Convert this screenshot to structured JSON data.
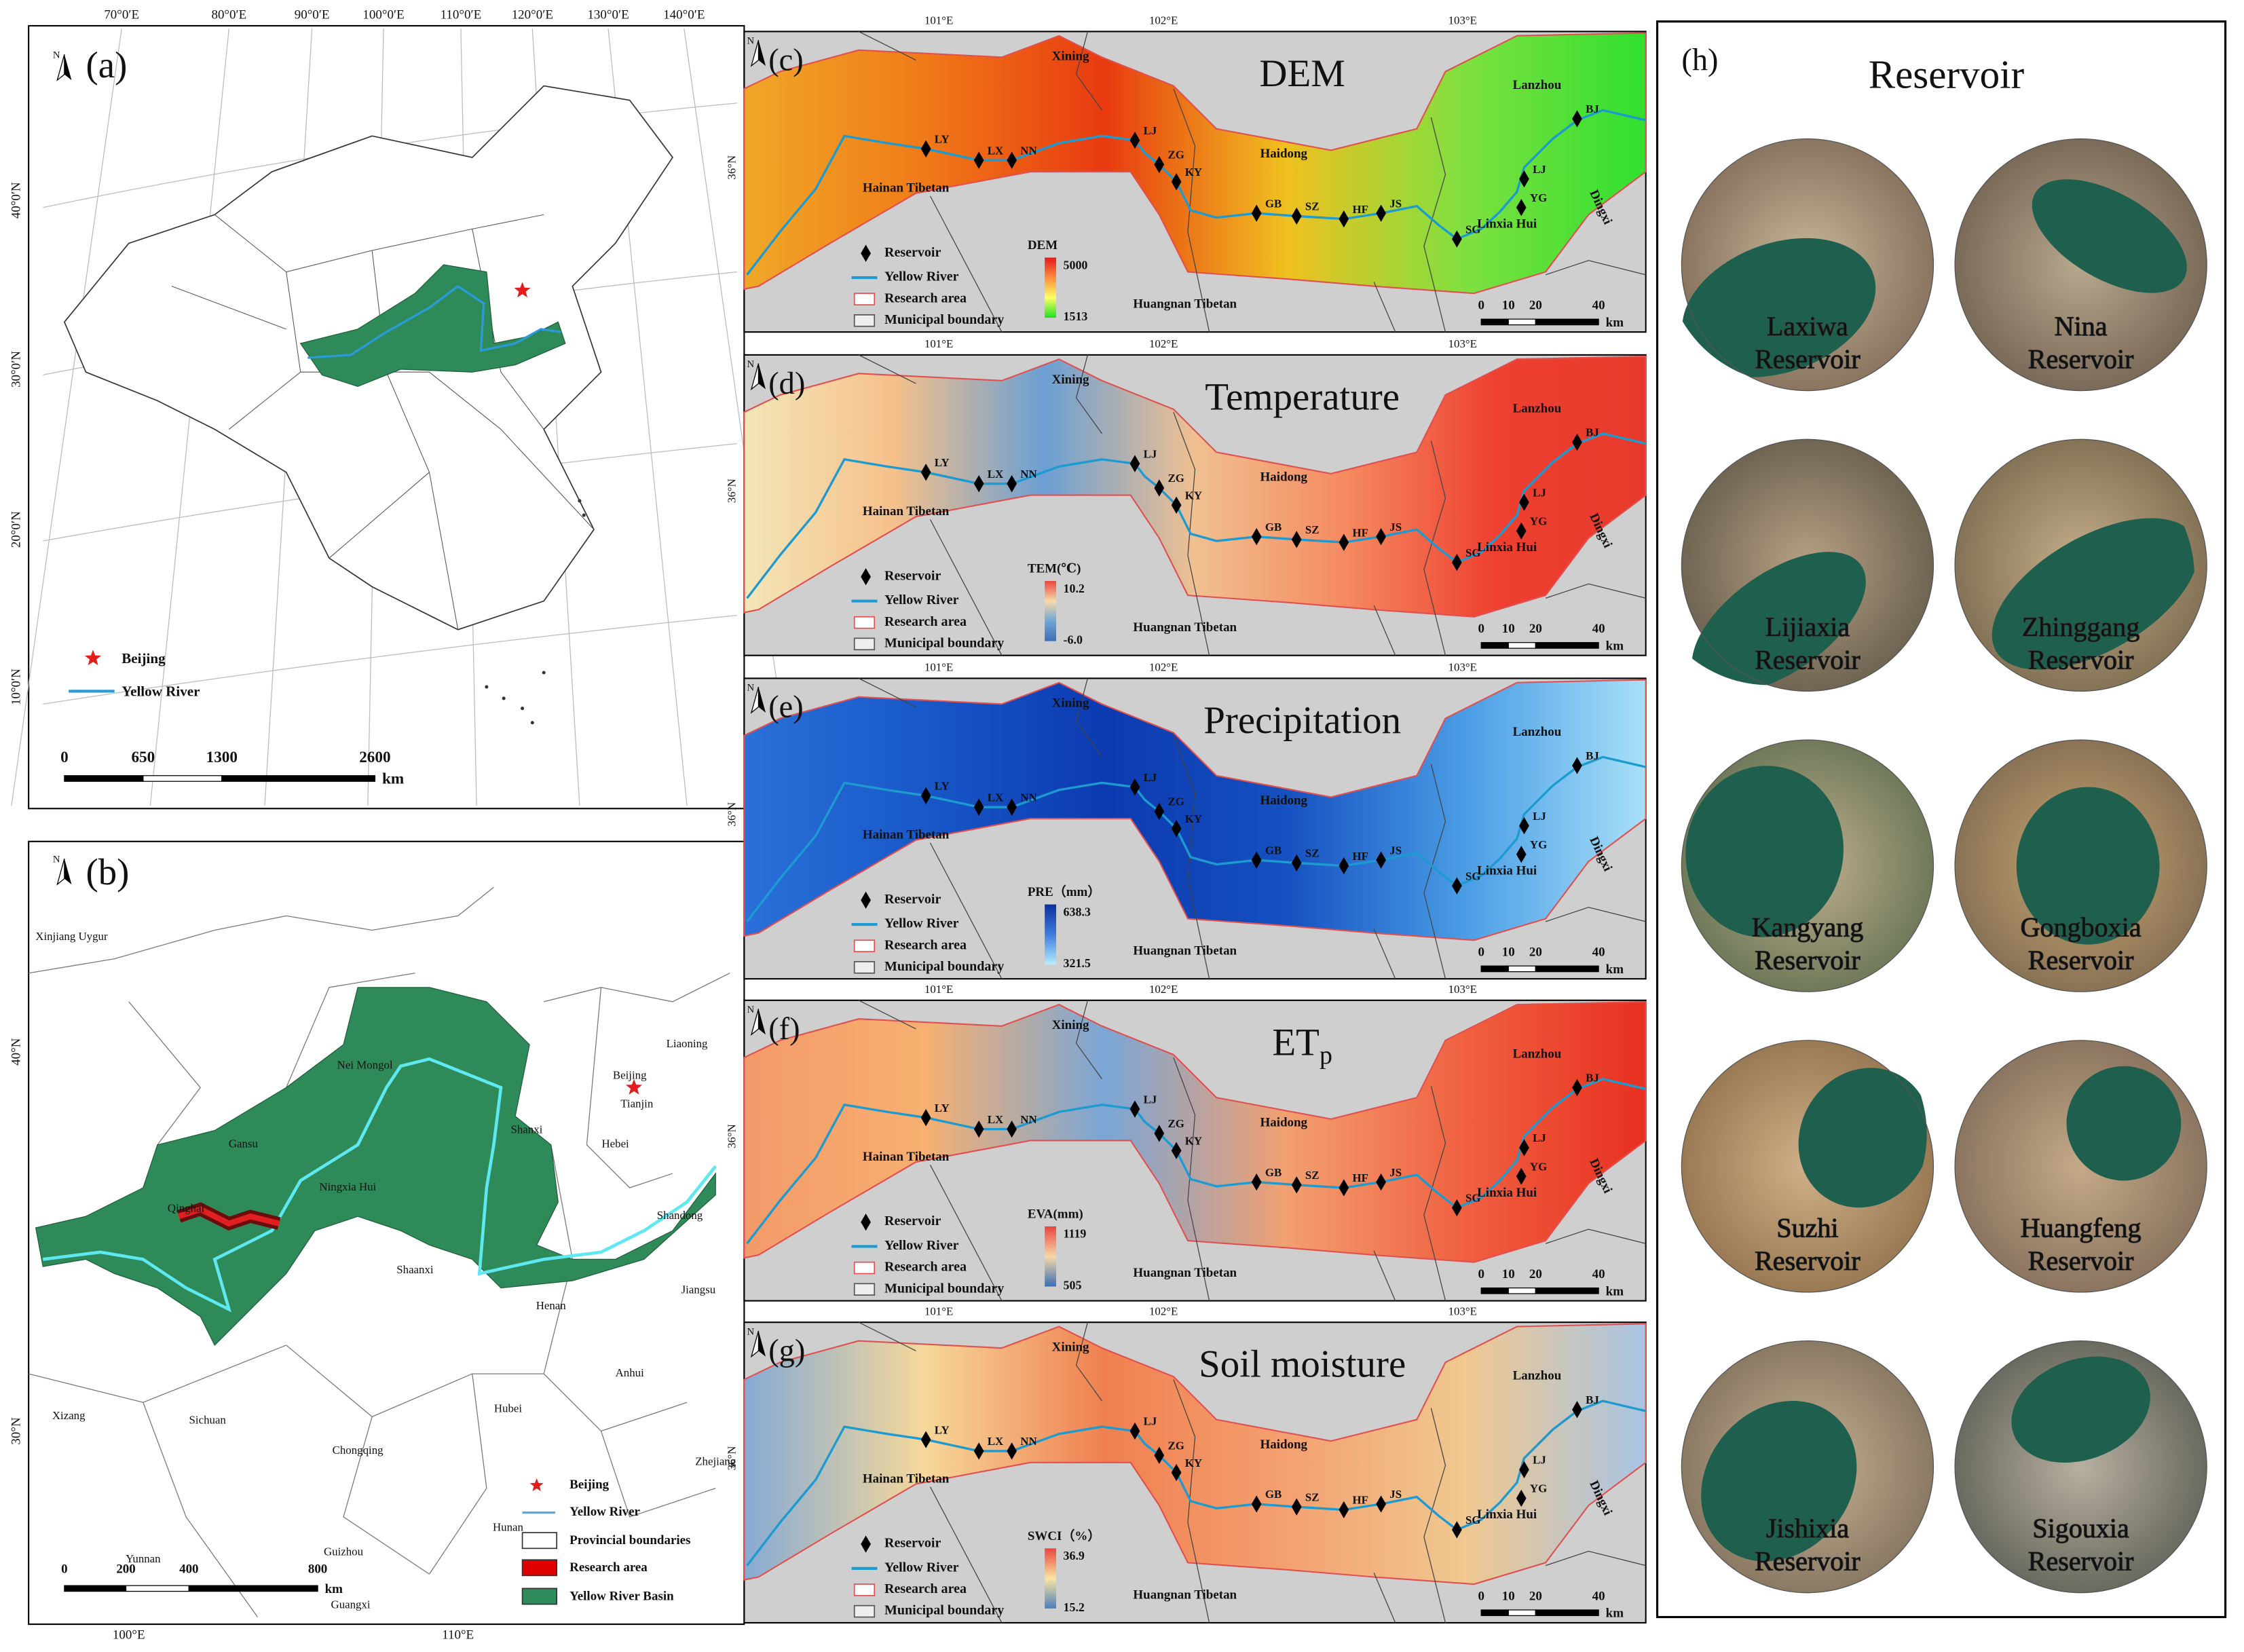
{
  "panel_a": {
    "label": "(a)",
    "north": "N",
    "lon_ticks": [
      "70°0′E",
      "80°0′E",
      "90°0′E",
      "100°0′E",
      "110°0′E",
      "120°0′E",
      "130°0′E",
      "140°0′E"
    ],
    "lat_ticks": [
      "40°0′N",
      "30°0′N",
      "20°0′N",
      "10°0′N"
    ],
    "legend": [
      "Beijing",
      "Yellow River"
    ],
    "scale": [
      "0",
      "650",
      "1300",
      "2600"
    ],
    "scale_unit": "km"
  },
  "panel_b": {
    "label": "(b)",
    "north": "N",
    "lat_ticks": [
      "40°N",
      "30°N"
    ],
    "lon_ticks": [
      "100°E",
      "110°E"
    ],
    "places": [
      "Xinjiang Uygur",
      "Gansu",
      "Qinghai",
      "Nei Mongol",
      "Ningxia Hui",
      "Shanxi",
      "Shaanxi",
      "Henan",
      "Hebei",
      "Beijing",
      "Tianjin",
      "Liaoning",
      "Shandong",
      "Jiangsu",
      "Anhui",
      "Hubei",
      "Sichuan",
      "Chongqing",
      "Xizang",
      "Yunnan",
      "Guizhou",
      "Hunan",
      "Guangxi",
      "Zhejiang"
    ],
    "legend": [
      "Beijing",
      "Yellow River",
      "Provincial boundaries",
      "Research area",
      "Yellow River Basin"
    ],
    "scale": [
      "0",
      "200",
      "400",
      "800"
    ],
    "scale_unit": "km"
  },
  "study_area": {
    "north": "N",
    "lon_ticks": [
      "101°E",
      "102°E",
      "103°E"
    ],
    "lat_tick": "36°N",
    "places": [
      "Xining",
      "Lanzhou",
      "Haidong",
      "Hainan Tibetan",
      "Huangnan Tibetan",
      "Linxia Hui",
      "Dingxi"
    ],
    "reservoir_codes": [
      "LY",
      "LX",
      "NN",
      "LJ",
      "ZG",
      "KY",
      "GB",
      "SZ",
      "HF",
      "JS",
      "SG",
      "YG",
      "LJ",
      "BJ"
    ],
    "legend": [
      "Reservoir",
      "Yellow River",
      "Research area",
      "Municipal boundary"
    ],
    "scale": [
      "0",
      "10",
      "20",
      "40"
    ],
    "scale_unit": "km"
  },
  "maps": [
    {
      "label": "(c)",
      "title": "DEM",
      "colorbar_title": "DEM",
      "colorbar_max": "5000",
      "colorbar_min": "1513",
      "ramp": [
        "#e31a1c",
        "#fd8d3c",
        "#ffff66",
        "#1ee01e"
      ],
      "fill": [
        "#f0a828",
        "#f07a18",
        "#e83a10",
        "#f0c020",
        "#7ee040",
        "#30e030"
      ]
    },
    {
      "label": "(d)",
      "title": "Temperature",
      "colorbar_title": "TEM(℃)",
      "colorbar_max": "10.2",
      "colorbar_min": "-6.0",
      "ramp": [
        "#e8453c",
        "#f7d9a8",
        "#6fa6d6",
        "#3a6fb5"
      ],
      "fill": [
        "#f4e6b8",
        "#f5c08a",
        "#6b9fd4",
        "#f0c090",
        "#f58a60",
        "#ee4030",
        "#e83a2c"
      ]
    },
    {
      "label": "(e)",
      "title": "Precipitation",
      "colorbar_title": "PRE（mm）",
      "colorbar_max": "638.3",
      "colorbar_min": "321.5",
      "ramp": [
        "#0b2f9e",
        "#3d7ddc",
        "#b8ecfa"
      ],
      "fill": [
        "#2a70d8",
        "#1858c8",
        "#0c3ab0",
        "#1550c0",
        "#4a9de6",
        "#a8e0f8"
      ]
    },
    {
      "label": "(f)",
      "title": "ET",
      "title_sub": "p",
      "colorbar_title": "EVA(mm)",
      "colorbar_max": "1119",
      "colorbar_min": "505",
      "ramp": [
        "#e8453c",
        "#f7d9a8",
        "#3a6fb5"
      ],
      "fill": [
        "#f39a6a",
        "#f7b070",
        "#7aa6d6",
        "#f2a070",
        "#f06040",
        "#e83020"
      ]
    },
    {
      "label": "(g)",
      "title": "Soil moisture",
      "colorbar_title": "SWCI（%）",
      "colorbar_max": "36.9",
      "colorbar_min": "15.2",
      "ramp": [
        "#e8453c",
        "#fbe5a0",
        "#4a7fbf"
      ],
      "fill": [
        "#86aad4",
        "#f6d89a",
        "#f08050",
        "#f4a070",
        "#f0c890",
        "#a8c4e4"
      ]
    }
  ],
  "panel_h": {
    "label": "(h)",
    "title": "Reservoir",
    "reservoirs": [
      {
        "name": "Laxiwa",
        "suffix": "Reservoir"
      },
      {
        "name": "Nina",
        "suffix": "Reservoir"
      },
      {
        "name": "Lijiaxia",
        "suffix": "Reservoir"
      },
      {
        "name": "Zhinggang",
        "suffix": "Reservoir"
      },
      {
        "name": "Kangyang",
        "suffix": "Reservoir"
      },
      {
        "name": "Gongboxia",
        "suffix": "Reservoir"
      },
      {
        "name": "Suzhi",
        "suffix": "Reservoir"
      },
      {
        "name": "Huangfeng",
        "suffix": "Reservoir"
      },
      {
        "name": "Jishixia",
        "suffix": "Reservoir"
      },
      {
        "name": "Sigouxia",
        "suffix": "Reservoir"
      }
    ]
  }
}
